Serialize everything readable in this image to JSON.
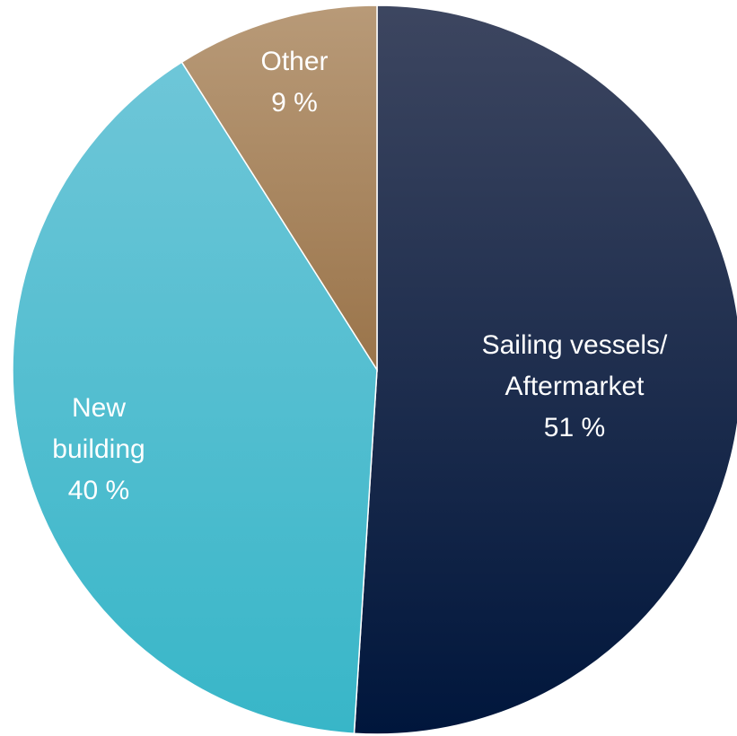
{
  "chart_data": {
    "type": "pie",
    "slices": [
      {
        "label_lines": [
          "Sailing vessels/",
          "Aftermarket"
        ],
        "value_label": "51 %",
        "value": 51,
        "color_top": "#3d4660",
        "color_bottom": "#00163c"
      },
      {
        "label_lines": [
          "New",
          "building"
        ],
        "value_label": "40 %",
        "value": 40,
        "color_top": "#6ec6d8",
        "color_bottom": "#38b6c8"
      },
      {
        "label_lines": [
          "Other"
        ],
        "value_label": "9 %",
        "value": 9,
        "color_top": "#b89a78",
        "color_bottom": "#9a744a"
      }
    ],
    "start_angle": "12 o'clock",
    "direction": "clockwise"
  }
}
